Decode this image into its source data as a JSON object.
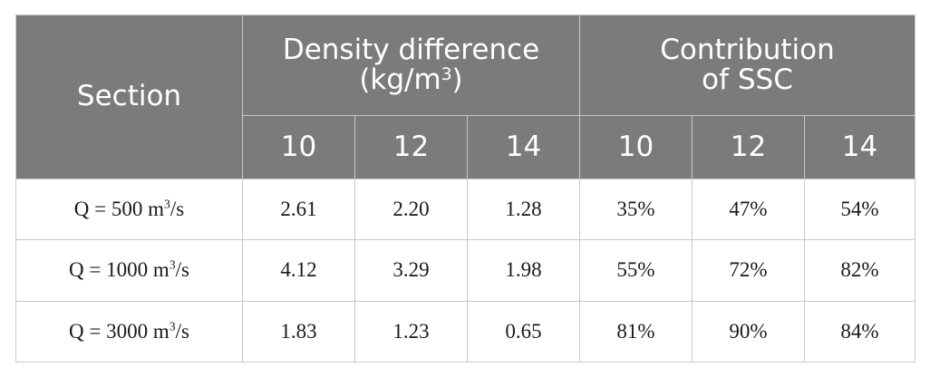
{
  "table": {
    "header": {
      "section": "Section",
      "groups": [
        {
          "label": "Density difference",
          "unit_pre": "(kg/m",
          "unit_sup": "3",
          "unit_post": ")"
        },
        {
          "label": "Contribution",
          "unit_pre": "of SSC"
        }
      ],
      "subcolumns": [
        "10",
        "12",
        "14",
        "10",
        "12",
        "14"
      ]
    },
    "rows": [
      {
        "label_pre": "Q = 500 m",
        "label_sup": "3",
        "label_post": "/s",
        "values": [
          "2.61",
          "2.20",
          "1.28",
          "35%",
          "47%",
          "54%"
        ]
      },
      {
        "label_pre": "Q = 1000 m",
        "label_sup": "3",
        "label_post": "/s",
        "values": [
          "4.12",
          "3.29",
          "1.98",
          "55%",
          "72%",
          "82%"
        ]
      },
      {
        "label_pre": "Q = 3000 m",
        "label_sup": "3",
        "label_post": "/s",
        "values": [
          "1.83",
          "1.23",
          "0.65",
          "81%",
          "90%",
          "84%"
        ]
      }
    ]
  }
}
